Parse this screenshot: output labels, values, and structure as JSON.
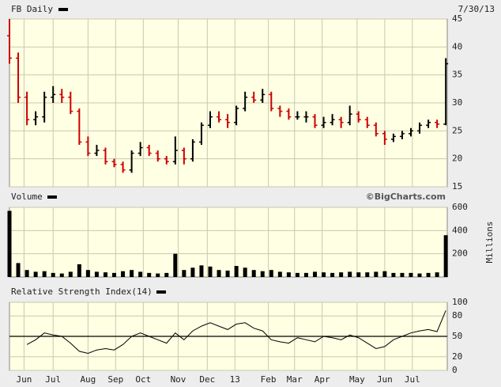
{
  "chart_data": [
    {
      "type": "ohlc",
      "title": "FB Daily",
      "date": "7/30/13",
      "up_color": "#000000",
      "down_color": "#cc0000",
      "x": [
        0,
        6,
        12,
        18,
        24,
        30,
        36,
        42,
        48,
        54,
        60,
        66,
        72,
        78,
        84,
        90,
        96,
        102,
        108,
        114,
        120,
        126,
        132,
        138,
        144,
        150,
        156,
        162,
        168,
        174,
        180,
        186,
        192,
        198,
        204,
        210,
        216,
        222,
        228,
        234,
        240,
        246,
        252,
        258,
        264,
        270,
        276,
        282,
        288,
        294,
        300
      ],
      "xlim": [
        0,
        301
      ],
      "open": [
        42,
        38,
        31,
        27,
        27.5,
        31,
        31.5,
        31,
        28.5,
        23,
        21,
        21.5,
        19.5,
        19,
        18,
        21,
        22,
        21,
        20,
        19.5,
        21.5,
        20,
        23,
        26,
        27.5,
        27,
        26.5,
        29,
        31,
        30.5,
        31.5,
        29,
        28.5,
        27.5,
        27.5,
        27.5,
        26,
        26.5,
        27,
        26.5,
        28,
        27,
        26,
        24.5,
        23.5,
        24,
        24.5,
        25,
        26,
        26.5,
        26.2
      ],
      "high": [
        45,
        39,
        32,
        28.5,
        32,
        33,
        32.5,
        32,
        29,
        24,
        22.5,
        22,
        20,
        19.5,
        21.5,
        23,
        22.5,
        21.5,
        20.5,
        24,
        22,
        23.5,
        26.5,
        28.5,
        28.5,
        28,
        29.5,
        32,
        32,
        32.5,
        32,
        29.5,
        29,
        28.5,
        28.5,
        28,
        27.5,
        28,
        27.5,
        29.5,
        28.5,
        27.5,
        26.5,
        25,
        24.5,
        25,
        25.5,
        26.5,
        27,
        27,
        38
      ],
      "low": [
        37,
        30,
        26,
        26,
        26.5,
        30,
        30,
        28,
        22.5,
        20.5,
        20.5,
        19,
        18.5,
        17.5,
        17.5,
        20.5,
        20.5,
        19.5,
        19,
        19,
        19,
        19.5,
        22.5,
        25.5,
        26.5,
        25.5,
        26,
        28.5,
        30,
        30,
        28.5,
        27.5,
        27,
        27,
        26.5,
        25.5,
        25.5,
        26,
        25.5,
        26,
        26.5,
        25.5,
        24,
        22.5,
        23,
        23.5,
        24,
        24.5,
        25.5,
        25.5,
        26
      ],
      "close": [
        38,
        31,
        27,
        27.5,
        31,
        31.5,
        31,
        28.5,
        23,
        21,
        21.5,
        19.5,
        19,
        18,
        21,
        22,
        21,
        20,
        19.5,
        21.5,
        20,
        23,
        26,
        27.5,
        27,
        26.5,
        29,
        31,
        30.5,
        31.5,
        29,
        28.5,
        27.5,
        27.5,
        27.5,
        26,
        26.5,
        27,
        26.5,
        28,
        27,
        26,
        24.5,
        23.5,
        24,
        24.5,
        25,
        26,
        26.5,
        26.2,
        37
      ],
      "ylim": [
        15,
        45
      ],
      "yticks": [
        15,
        20,
        25,
        30,
        35,
        40,
        45
      ],
      "grid": true
    },
    {
      "type": "bar",
      "title": "Volume",
      "source": "©BigCharts.com",
      "ylabel": "Millions",
      "color": "#000000",
      "values": [
        570,
        120,
        60,
        45,
        50,
        35,
        30,
        45,
        110,
        60,
        45,
        40,
        35,
        50,
        60,
        45,
        35,
        30,
        35,
        200,
        60,
        80,
        100,
        90,
        60,
        55,
        95,
        80,
        60,
        50,
        60,
        45,
        40,
        35,
        35,
        45,
        40,
        35,
        40,
        45,
        40,
        40,
        45,
        50,
        35,
        35,
        35,
        30,
        35,
        40,
        360
      ],
      "ylim": [
        0,
        600
      ],
      "yticks": [
        200,
        400,
        600
      ],
      "grid": true
    },
    {
      "type": "line",
      "title": "Relative Strength Index(14)",
      "color": "#000000",
      "values": [
        null,
        null,
        38,
        45,
        55,
        52,
        50,
        40,
        28,
        25,
        30,
        32,
        30,
        38,
        50,
        55,
        50,
        45,
        40,
        55,
        45,
        58,
        65,
        70,
        65,
        60,
        68,
        70,
        62,
        58,
        45,
        42,
        40,
        48,
        45,
        42,
        50,
        48,
        45,
        52,
        48,
        40,
        32,
        35,
        45,
        50,
        55,
        58,
        60,
        57,
        88
      ],
      "ylim": [
        0,
        100
      ],
      "yticks": [
        0,
        20,
        50,
        80,
        100
      ],
      "reference_line": 50,
      "grid": true,
      "xticks": [
        {
          "value": 10,
          "label": "Jun"
        },
        {
          "value": 30,
          "label": "Jul"
        },
        {
          "value": 54,
          "label": "Aug"
        },
        {
          "value": 73,
          "label": "Sep"
        },
        {
          "value": 92,
          "label": "Oct"
        },
        {
          "value": 116,
          "label": "Nov"
        },
        {
          "value": 136,
          "label": "Dec"
        },
        {
          "value": 155,
          "label": "13"
        },
        {
          "value": 178,
          "label": "Feb"
        },
        {
          "value": 196,
          "label": "Mar"
        },
        {
          "value": 215,
          "label": "Apr"
        },
        {
          "value": 239,
          "label": "May"
        },
        {
          "value": 258,
          "label": "Jun"
        },
        {
          "value": 277,
          "label": "Jul"
        }
      ]
    }
  ]
}
